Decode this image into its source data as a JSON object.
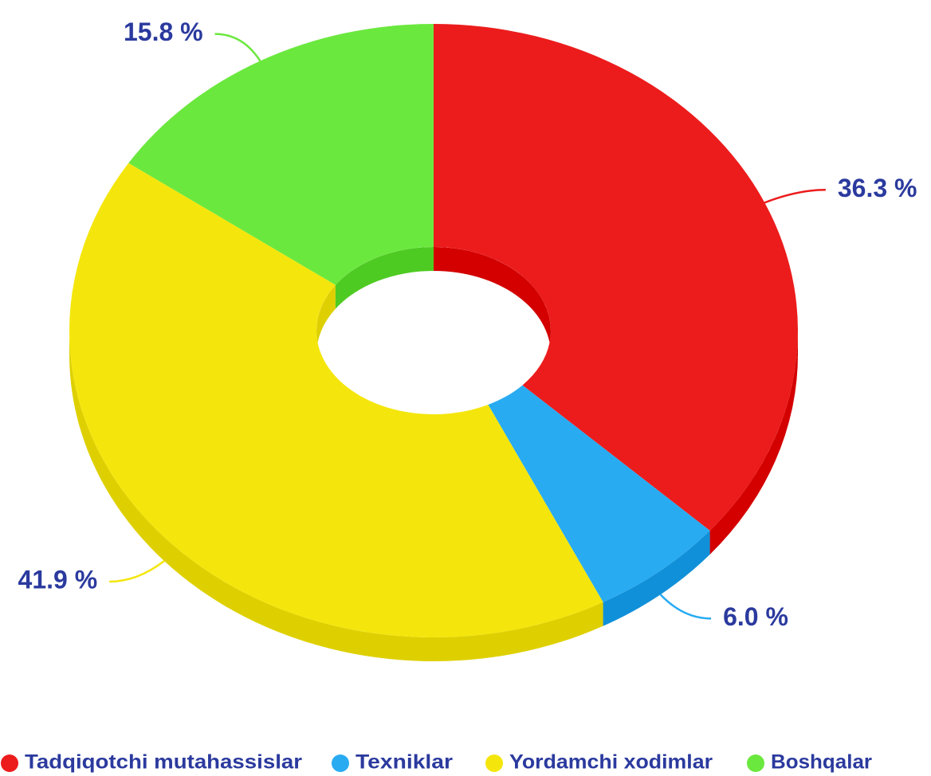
{
  "chart_data": {
    "type": "pie",
    "categories": [
      "Tadqiqotchi mutahassislar",
      "Texniklar",
      "Yordamchi xodimlar",
      "Boshqalar"
    ],
    "values": [
      36.3,
      6.0,
      41.9,
      15.8
    ],
    "value_labels": [
      "36.3 %",
      "6.0 %",
      "41.9 %",
      "15.8 %"
    ],
    "colors": [
      "#ec1c1c",
      "#29abf2",
      "#f4e60c",
      "#6be83e"
    ],
    "side_colors": [
      "#d40000",
      "#1090d8",
      "#ded000",
      "#4ecb22"
    ],
    "donut": true,
    "three_d": true,
    "legend": "bottom"
  }
}
